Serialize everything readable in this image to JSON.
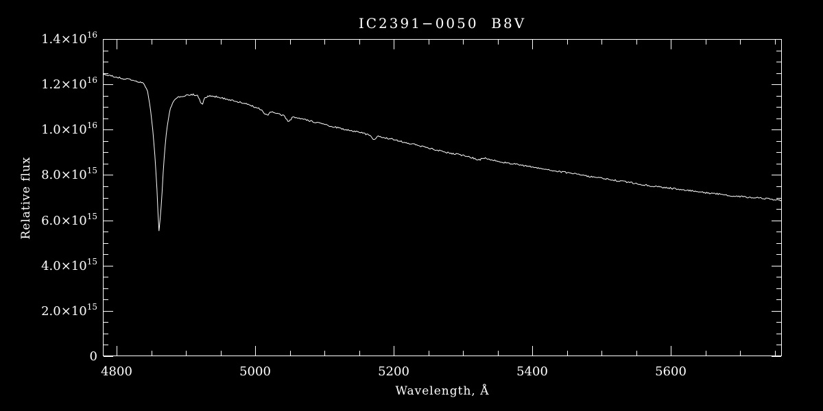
{
  "page": {
    "background": "#000000",
    "foreground": "#ffffff"
  },
  "chart_data": {
    "type": "line",
    "title": "IC2391−0050  B8V",
    "xlabel": "Wavelength, Å",
    "ylabel": "Relative flux",
    "xlim": [
      4780,
      5760
    ],
    "ylim": [
      0,
      1.4e+16
    ],
    "grid": false,
    "legend": "none",
    "x_ticks": {
      "major": [
        4800,
        5000,
        5200,
        5400,
        5600
      ],
      "labels": [
        "4800",
        "5000",
        "5200",
        "5400",
        "5600"
      ],
      "minor_step": 50
    },
    "y_ticks": {
      "major": [
        0,
        2000000000000000.0,
        4000000000000000.0,
        6000000000000000.0,
        8000000000000000.0,
        1e+16,
        1.2e+16,
        1.4e+16
      ],
      "labels": [
        {
          "text": "0",
          "sup": ""
        },
        {
          "text": "2.0×10",
          "sup": "15"
        },
        {
          "text": "4.0×10",
          "sup": "15"
        },
        {
          "text": "6.0×10",
          "sup": "15"
        },
        {
          "text": "8.0×10",
          "sup": "15"
        },
        {
          "text": "1.0×10",
          "sup": "16"
        },
        {
          "text": "1.2×10",
          "sup": "16"
        },
        {
          "text": "1.4×10",
          "sup": "16"
        }
      ],
      "minor_step": 500000000000000.0
    },
    "series": [
      {
        "name": "spectrum",
        "color": "#ffffff",
        "flux_unit": 1000000000000000.0,
        "anchors_wavelength": [
          4780,
          4795,
          4810,
          4825,
          4838,
          4844,
          4848,
          4852,
          4855,
          4858,
          4860,
          4861,
          4862,
          4865,
          4868,
          4872,
          4877,
          4883,
          4890,
          4900,
          4910,
          4917,
          4921,
          4924,
          4927,
          4935,
          4950,
          4965,
          4980,
          4995,
          5008,
          5014,
          5018,
          5022,
          5032,
          5042,
          5048,
          5054,
          5070,
          5090,
          5110,
          5130,
          5150,
          5165,
          5171,
          5177,
          5195,
          5215,
          5235,
          5255,
          5275,
          5295,
          5315,
          5322,
          5330,
          5350,
          5370,
          5390,
          5410,
          5430,
          5450,
          5470,
          5490,
          5510,
          5530,
          5550,
          5570,
          5590,
          5610,
          5630,
          5650,
          5670,
          5690,
          5710,
          5730,
          5745,
          5760
        ],
        "anchors_flux": [
          12.45,
          12.35,
          12.25,
          12.18,
          12.05,
          11.75,
          11.1,
          10.0,
          8.9,
          7.4,
          6.0,
          5.5,
          5.75,
          7.0,
          8.6,
          10.0,
          10.9,
          11.3,
          11.45,
          11.5,
          11.55,
          11.5,
          11.2,
          11.15,
          11.4,
          11.5,
          11.42,
          11.3,
          11.2,
          11.05,
          10.9,
          10.7,
          10.6,
          10.8,
          10.7,
          10.6,
          10.35,
          10.55,
          10.45,
          10.3,
          10.15,
          10.0,
          9.9,
          9.75,
          9.55,
          9.7,
          9.6,
          9.45,
          9.3,
          9.15,
          9.0,
          8.9,
          8.75,
          8.65,
          8.75,
          8.6,
          8.5,
          8.4,
          8.3,
          8.2,
          8.1,
          8.0,
          7.9,
          7.8,
          7.72,
          7.62,
          7.52,
          7.45,
          7.38,
          7.3,
          7.22,
          7.15,
          7.08,
          7.02,
          6.98,
          6.92,
          6.88
        ]
      }
    ],
    "sampling": {
      "step": 1.5,
      "noise_amplitude": 0.035,
      "seed": 20
    }
  }
}
